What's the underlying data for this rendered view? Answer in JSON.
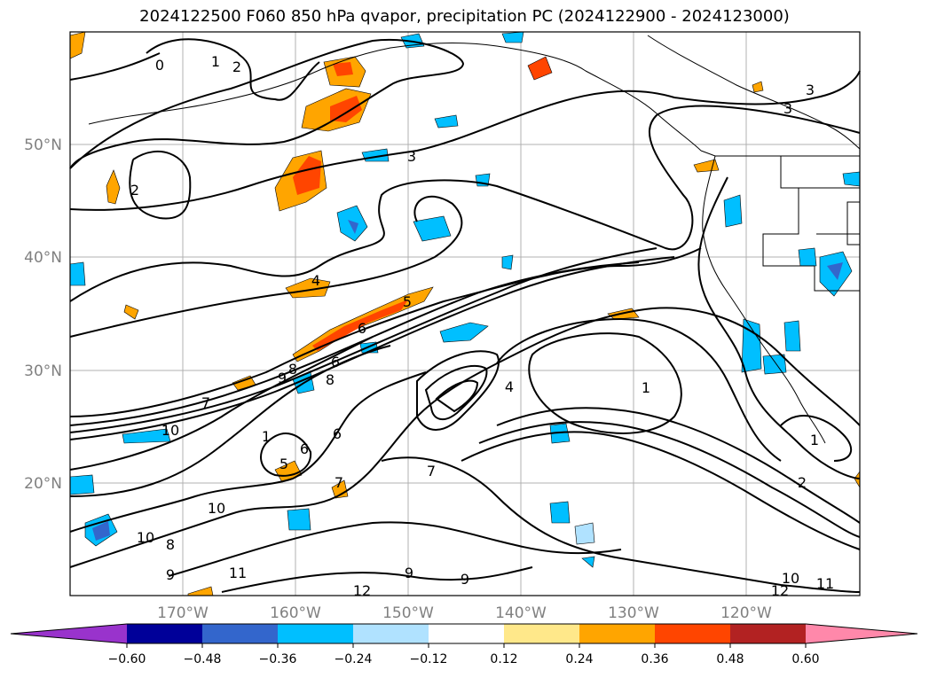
{
  "title": "2024122500 F060 850 hPa qvapor, precipitation PC (2024122900 - 2024123000)",
  "map": {
    "lat_labels": [
      "50°N",
      "40°N",
      "30°N",
      "20°N"
    ],
    "lon_labels": [
      "170°W",
      "160°W",
      "150°W",
      "140°W",
      "130°W",
      "120°W"
    ],
    "contour_labels": [
      "0",
      "1",
      "2",
      "2",
      "3",
      "3",
      "3",
      "4",
      "5",
      "6",
      "7",
      "8",
      "8",
      "9",
      "10",
      "10",
      "10",
      "7",
      "6",
      "5",
      "6",
      "6",
      "7",
      "8",
      "9",
      "9",
      "9",
      "10",
      "11",
      "11",
      "12",
      "12",
      "1",
      "1",
      "1",
      "2",
      "4"
    ]
  },
  "colorbar": {
    "colors": [
      "#9933cc",
      "#000099",
      "#3366cc",
      "#00bfff",
      "#b0e2ff",
      "#ffffff",
      "#ffe88a",
      "#ffa500",
      "#ff4500",
      "#b22222",
      "#ff88aa"
    ],
    "labels": [
      "−0.60",
      "−0.48",
      "−0.36",
      "−0.24",
      "−0.12",
      "0.12",
      "0.24",
      "0.36",
      "0.48",
      "0.60"
    ]
  }
}
